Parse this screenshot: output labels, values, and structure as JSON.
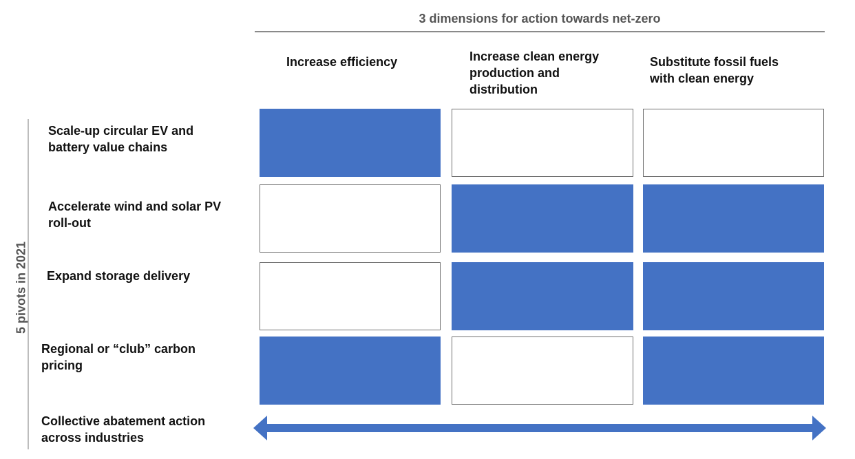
{
  "title": "3 dimensions for action towards net-zero",
  "side_label": "5 pivots in 2021",
  "columns": [
    {
      "label": "Increase efficiency"
    },
    {
      "label": "Increase clean energy production and distribution"
    },
    {
      "label": "Substitute fossil fuels with clean energy"
    }
  ],
  "rows": [
    {
      "label": "Scale-up circular EV and battery value chains",
      "cells": [
        true,
        false,
        false
      ]
    },
    {
      "label": "Accelerate wind and solar PV roll-out",
      "cells": [
        false,
        true,
        true
      ]
    },
    {
      "label": "Expand storage delivery",
      "cells": [
        false,
        true,
        true
      ]
    },
    {
      "label": "Regional or “club” carbon pricing",
      "cells": [
        true,
        false,
        true
      ]
    }
  ],
  "bottom_row": {
    "label": "Collective abatement action across industries"
  },
  "colors": {
    "filled": "#4472c4",
    "empty": "#ffffff",
    "arrow": "#4472c4"
  }
}
